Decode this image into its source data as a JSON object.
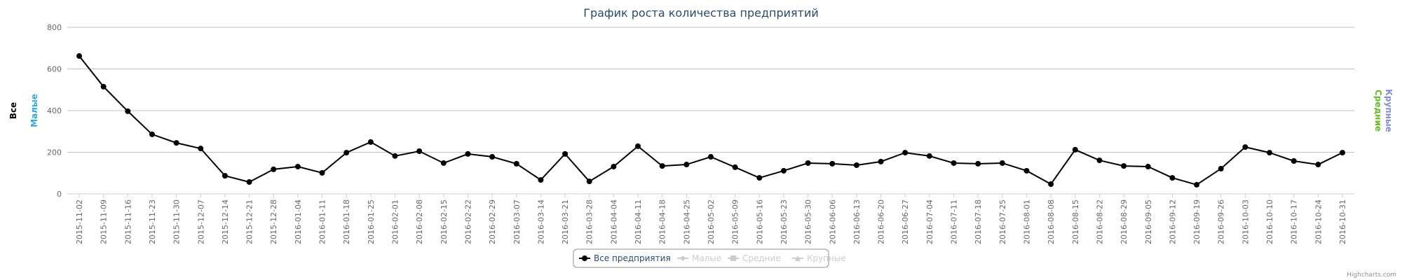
{
  "chart_data": {
    "type": "line",
    "title": "График роста количества предприятий",
    "categories": [
      "2015-11-02",
      "2015-11-09",
      "2015-11-16",
      "2015-11-23",
      "2015-11-30",
      "2015-12-07",
      "2015-12-14",
      "2015-12-21",
      "2015-12-28",
      "2016-01-04",
      "2016-01-11",
      "2016-01-18",
      "2016-01-25",
      "2016-02-01",
      "2016-02-08",
      "2016-02-15",
      "2016-02-22",
      "2016-02-29",
      "2016-03-07",
      "2016-03-14",
      "2016-03-21",
      "2016-03-28",
      "2016-04-04",
      "2016-04-11",
      "2016-04-18",
      "2016-04-25",
      "2016-05-02",
      "2016-05-09",
      "2016-05-16",
      "2016-05-23",
      "2016-05-30",
      "2016-06-06",
      "2016-06-13",
      "2016-06-20",
      "2016-06-27",
      "2016-07-04",
      "2016-07-11",
      "2016-07-18",
      "2016-07-25",
      "2016-08-01",
      "2016-08-08",
      "2016-08-15",
      "2016-08-22",
      "2016-08-29",
      "2016-09-05",
      "2016-09-12",
      "2016-09-19",
      "2016-09-26",
      "2016-10-03",
      "2016-10-10",
      "2016-10-17",
      "2016-10-24",
      "2016-10-31"
    ],
    "series": [
      {
        "name": "Все предприятия",
        "color": "#000000",
        "marker": "circle",
        "visible": true,
        "axis_title": "Все",
        "axis_side": "left",
        "values": [
          662,
          515,
          397,
          286,
          245,
          218,
          87,
          57,
          118,
          131,
          101,
          198,
          249,
          182,
          205,
          148,
          192,
          178,
          145,
          67,
          192,
          60,
          131,
          229,
          134,
          141,
          178,
          128,
          77,
          111,
          148,
          145,
          138,
          155,
          198,
          182,
          148,
          145,
          148,
          111,
          47,
          212,
          161,
          134,
          131,
          77,
          44,
          121,
          225,
          198,
          158,
          141,
          198
        ]
      },
      {
        "name": "Малые",
        "color": "#2eaadc",
        "marker": "diamond",
        "visible": false,
        "axis_title": "Малые",
        "axis_side": "left"
      },
      {
        "name": "Средние",
        "color": "#66bb22",
        "marker": "square",
        "visible": false,
        "axis_title": "Средние",
        "axis_side": "right"
      },
      {
        "name": "Крупные",
        "color": "#7f8fd8",
        "marker": "triangle",
        "visible": false,
        "axis_title": "Крупные",
        "axis_side": "right"
      }
    ],
    "ylim": [
      0,
      800
    ],
    "yticks": [
      0,
      200,
      400,
      600,
      800
    ],
    "grid": true,
    "legend": "bottom",
    "credits": "Highcharts.com"
  }
}
